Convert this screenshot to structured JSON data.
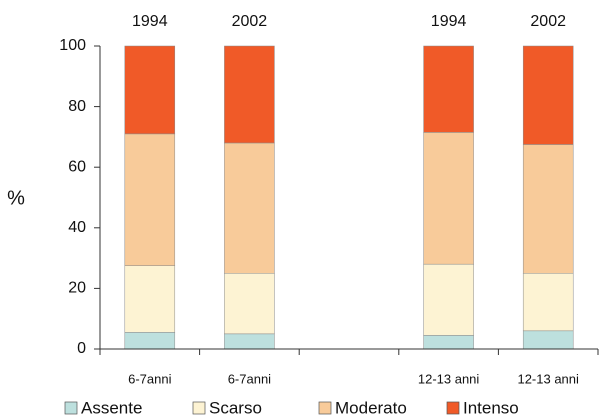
{
  "chart_data": {
    "type": "stacked_bar",
    "y_label": "%",
    "years": [
      "1994",
      "2002",
      null,
      "1994",
      "2002"
    ],
    "categories": [
      "6-7anni",
      "6-7anni",
      null,
      "12-13 anni",
      "12-13 anni"
    ],
    "series": [
      {
        "name": "Assente",
        "color": "#bde0de",
        "values": [
          5.5,
          5,
          null,
          4.5,
          6
        ]
      },
      {
        "name": "Scarso",
        "color": "#fdf3d3",
        "values": [
          22,
          20,
          null,
          23.5,
          19
        ]
      },
      {
        "name": "Moderato",
        "color": "#f8cb9a",
        "values": [
          43.5,
          43,
          null,
          43.5,
          42.5
        ]
      },
      {
        "name": "Intenso",
        "color": "#f05a28",
        "values": [
          29,
          32,
          null,
          28.5,
          32.5
        ]
      }
    ],
    "ylim": [
      0,
      100
    ],
    "yticks": [
      0,
      20,
      40,
      60,
      80,
      100
    ],
    "legend": "bottom"
  }
}
